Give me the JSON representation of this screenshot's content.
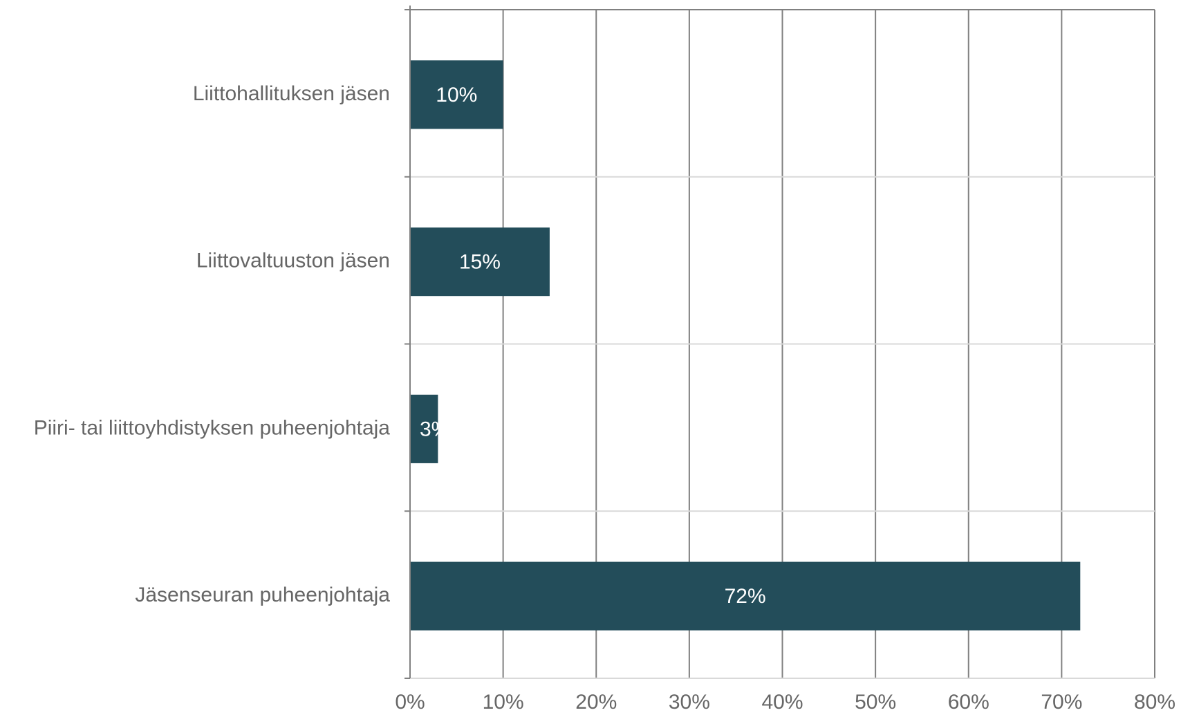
{
  "chart_data": {
    "type": "bar",
    "orientation": "horizontal",
    "categories": [
      "Liittohallituksen jäsen",
      "Liittovaltuuston jäsen",
      "Piiri- tai liittoyhdistyksen puheenjohtaja",
      "Jäsenseuran puheenjohtaja"
    ],
    "values": [
      10,
      15,
      3,
      72
    ],
    "data_labels": [
      "10%",
      "15%",
      "3%",
      "72%"
    ],
    "xlim": [
      0,
      80
    ],
    "x_ticks": [
      0,
      10,
      20,
      30,
      40,
      50,
      60,
      70,
      80
    ],
    "x_tick_labels": [
      "0%",
      "10%",
      "20%",
      "30%",
      "40%",
      "50%",
      "60%",
      "70%",
      "80%"
    ],
    "title": "",
    "xlabel": "",
    "ylabel": "",
    "grid": true,
    "legend": "none",
    "colors": {
      "bar": "#234d5a",
      "gridline": "#808080",
      "category_separator": "#d9d9d9",
      "axis": "#808080",
      "text": "#666666",
      "bar_label": "#ffffff"
    }
  }
}
